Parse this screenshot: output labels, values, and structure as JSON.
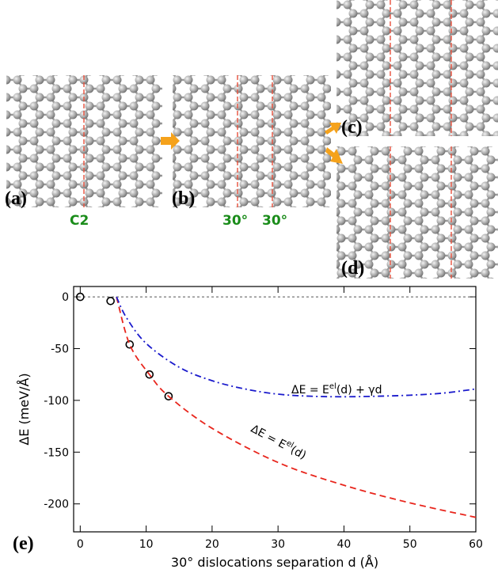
{
  "panels": {
    "a": "(a)",
    "b": "(b)",
    "c": "(c)",
    "d": "(d)",
    "e": "(e)",
    "label_a": "C2",
    "label_b1": "30°",
    "label_b2": "30°"
  },
  "chart_data": {
    "type": "scatter",
    "xlabel": "30° dislocations separation d (Å)",
    "ylabel": "ΔE (meV/Å)",
    "xlim": [
      -1,
      60
    ],
    "ylim": [
      -227,
      10
    ],
    "xticks": [
      0,
      10,
      20,
      30,
      40,
      50,
      60
    ],
    "yticks": [
      0,
      -50,
      -100,
      -150,
      -200
    ],
    "hline": 0,
    "series": [
      {
        "mode": "markers",
        "color": "#000000",
        "x": [
          0,
          4.6,
          7.5,
          10.5,
          13.4
        ],
        "values": [
          0,
          -4,
          -46,
          -75,
          -96
        ]
      },
      {
        "mode": "dashed",
        "color": "#e8251c",
        "x": [
          5.5,
          7.5,
          10.5,
          13.4,
          20,
          30,
          40,
          50,
          60
        ],
        "values": [
          0,
          -46,
          -75,
          -96,
          -127,
          -160,
          -182,
          -199,
          -213
        ]
      },
      {
        "mode": "dashdot",
        "color": "#1a1acc",
        "x": [
          5.5,
          7,
          10,
          15,
          20,
          25,
          30,
          35,
          40,
          45,
          50,
          55,
          60
        ],
        "values": [
          0,
          -20,
          -45,
          -68,
          -81,
          -89,
          -94,
          -96,
          -96.5,
          -96,
          -95,
          -93,
          -89
        ]
      }
    ],
    "annotations": [
      {
        "parts": [
          "ΔE = E",
          "el",
          "(d)"
        ]
      },
      {
        "parts": [
          "ΔE = E",
          "el",
          "(d) + γd"
        ]
      }
    ]
  }
}
